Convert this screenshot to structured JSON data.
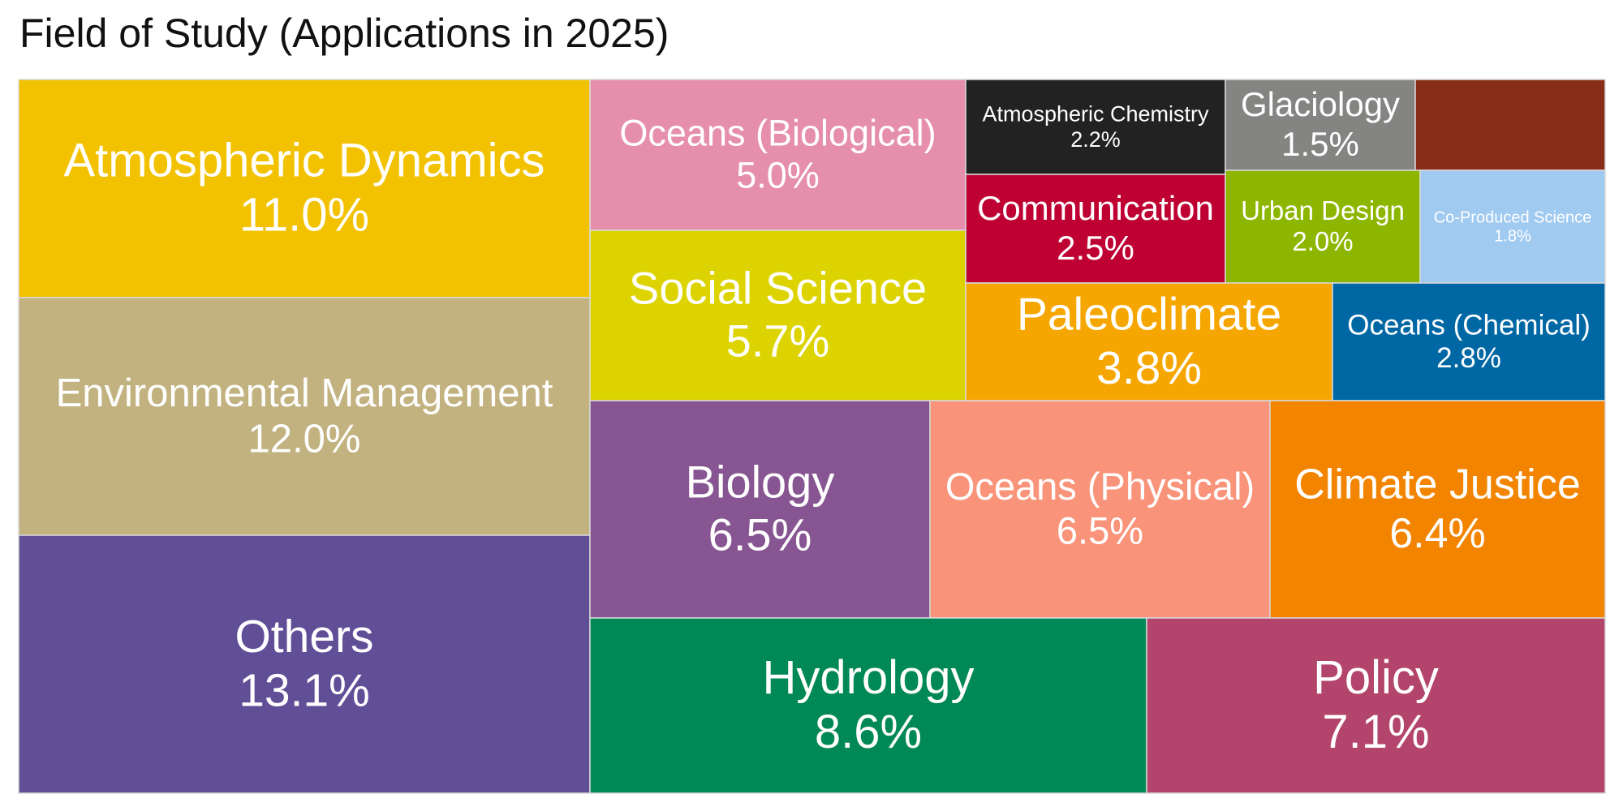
{
  "chart_data": {
    "type": "treemap",
    "title": "Field of Study (Applications in 2025)",
    "unit": "%",
    "items": [
      {
        "label": "Atmospheric Dynamics",
        "value_label": "11.0%",
        "value": 11.0,
        "color": "#F2C200",
        "text_color": "#ffffff"
      },
      {
        "label": "Environmental Management",
        "value_label": "12.0%",
        "value": 12.0,
        "color": "#C2B280",
        "text_color": "#ffffff"
      },
      {
        "label": "Others",
        "value_label": "13.1%",
        "value": 13.1,
        "color": "#604E97",
        "text_color": "#ffffff"
      },
      {
        "label": "Oceans (Biological)",
        "value_label": "5.0%",
        "value": 5.0,
        "color": "#E68FAC",
        "text_color": "#ffffff"
      },
      {
        "label": "Social Science",
        "value_label": "5.7%",
        "value": 5.7,
        "color": "#DCD300",
        "text_color": "#ffffff"
      },
      {
        "label": "Atmospheric Chemistry",
        "value_label": "2.2%",
        "value": 2.2,
        "color": "#222222",
        "text_color": "#ffffff"
      },
      {
        "label": "Glaciology",
        "value_label": "1.5%",
        "value": 1.5,
        "color": "#848482",
        "text_color": "#ffffff"
      },
      {
        "label": "",
        "value_label": "",
        "value": 1.3,
        "color": "#882D17",
        "text_color": "#ffffff"
      },
      {
        "label": "Communication",
        "value_label": "2.5%",
        "value": 2.5,
        "color": "#BE0032",
        "text_color": "#ffffff"
      },
      {
        "label": "Urban Design",
        "value_label": "2.0%",
        "value": 2.0,
        "color": "#8DB600",
        "text_color": "#ffffff"
      },
      {
        "label": "Co-Produced Science",
        "value_label": "1.8%",
        "value": 1.8,
        "color": "#A1CAF1",
        "text_color": "#ffffff"
      },
      {
        "label": "Paleoclimate",
        "value_label": "3.8%",
        "value": 3.8,
        "color": "#F6A600",
        "text_color": "#ffffff"
      },
      {
        "label": "Oceans (Chemical)",
        "value_label": "2.8%",
        "value": 2.8,
        "color": "#0067A5",
        "text_color": "#ffffff"
      },
      {
        "label": "Biology",
        "value_label": "6.5%",
        "value": 6.5,
        "color": "#875692",
        "text_color": "#ffffff"
      },
      {
        "label": "Oceans (Physical)",
        "value_label": "6.5%",
        "value": 6.5,
        "color": "#F99379",
        "text_color": "#ffffff"
      },
      {
        "label": "Climate Justice",
        "value_label": "6.4%",
        "value": 6.4,
        "color": "#F38400",
        "text_color": "#ffffff"
      },
      {
        "label": "Hydrology",
        "value_label": "8.6%",
        "value": 8.6,
        "color": "#008856",
        "text_color": "#ffffff"
      },
      {
        "label": "Policy",
        "value_label": "7.1%",
        "value": 7.1,
        "color": "#B3446C",
        "text_color": "#ffffff"
      }
    ]
  }
}
